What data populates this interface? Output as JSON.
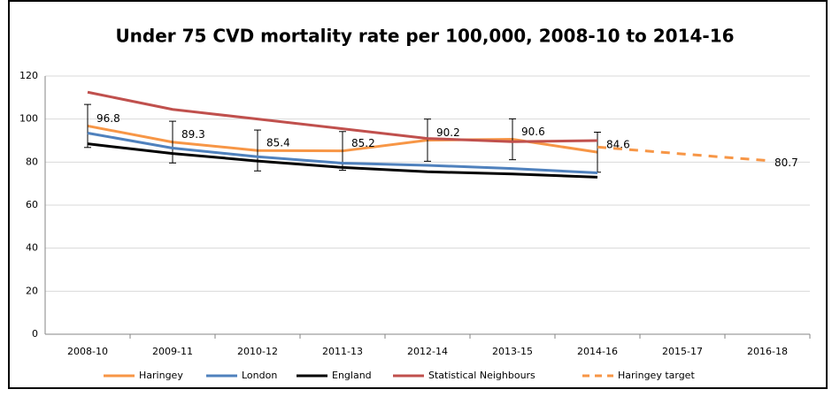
{
  "chart_data": {
    "type": "line",
    "title": "Under 75 CVD mortality rate per 100,000, 2008-10 to 2014-16",
    "categories": [
      "2008-10",
      "2009-11",
      "2010-12",
      "2011-13",
      "2012-14",
      "2013-15",
      "2014-16",
      "2015-17",
      "2016-18"
    ],
    "series": [
      {
        "name": "Haringey",
        "color": "#f79646",
        "dash": false,
        "show_labels": true,
        "values": [
          96.8,
          89.3,
          85.4,
          85.2,
          90.2,
          90.6,
          84.6,
          null,
          null
        ],
        "error": [
          10,
          9.7,
          9.5,
          9,
          9.8,
          9.5,
          9.3,
          null,
          null
        ]
      },
      {
        "name": "London",
        "color": "#4f81bd",
        "dash": false,
        "values": [
          93.5,
          86.5,
          82.5,
          79.5,
          78.5,
          77,
          75,
          null,
          null
        ]
      },
      {
        "name": "England",
        "color": "#000000",
        "dash": false,
        "values": [
          88.5,
          84,
          80.5,
          77.5,
          75.5,
          74.5,
          73,
          null,
          null
        ]
      },
      {
        "name": "Statistical Neighbours",
        "color": "#c0504d",
        "dash": false,
        "values": [
          112.5,
          104.5,
          100,
          95.5,
          91,
          89.5,
          90,
          null,
          null
        ]
      },
      {
        "name": "Haringey target",
        "color": "#f79646",
        "dash": true,
        "label_index": 8,
        "values": [
          null,
          null,
          null,
          null,
          null,
          null,
          87,
          83.8,
          80.7
        ]
      }
    ],
    "ylim": [
      0,
      120
    ],
    "yticks": [
      0,
      20,
      40,
      60,
      80,
      100,
      120
    ],
    "grid": true,
    "legend": "bottom"
  }
}
